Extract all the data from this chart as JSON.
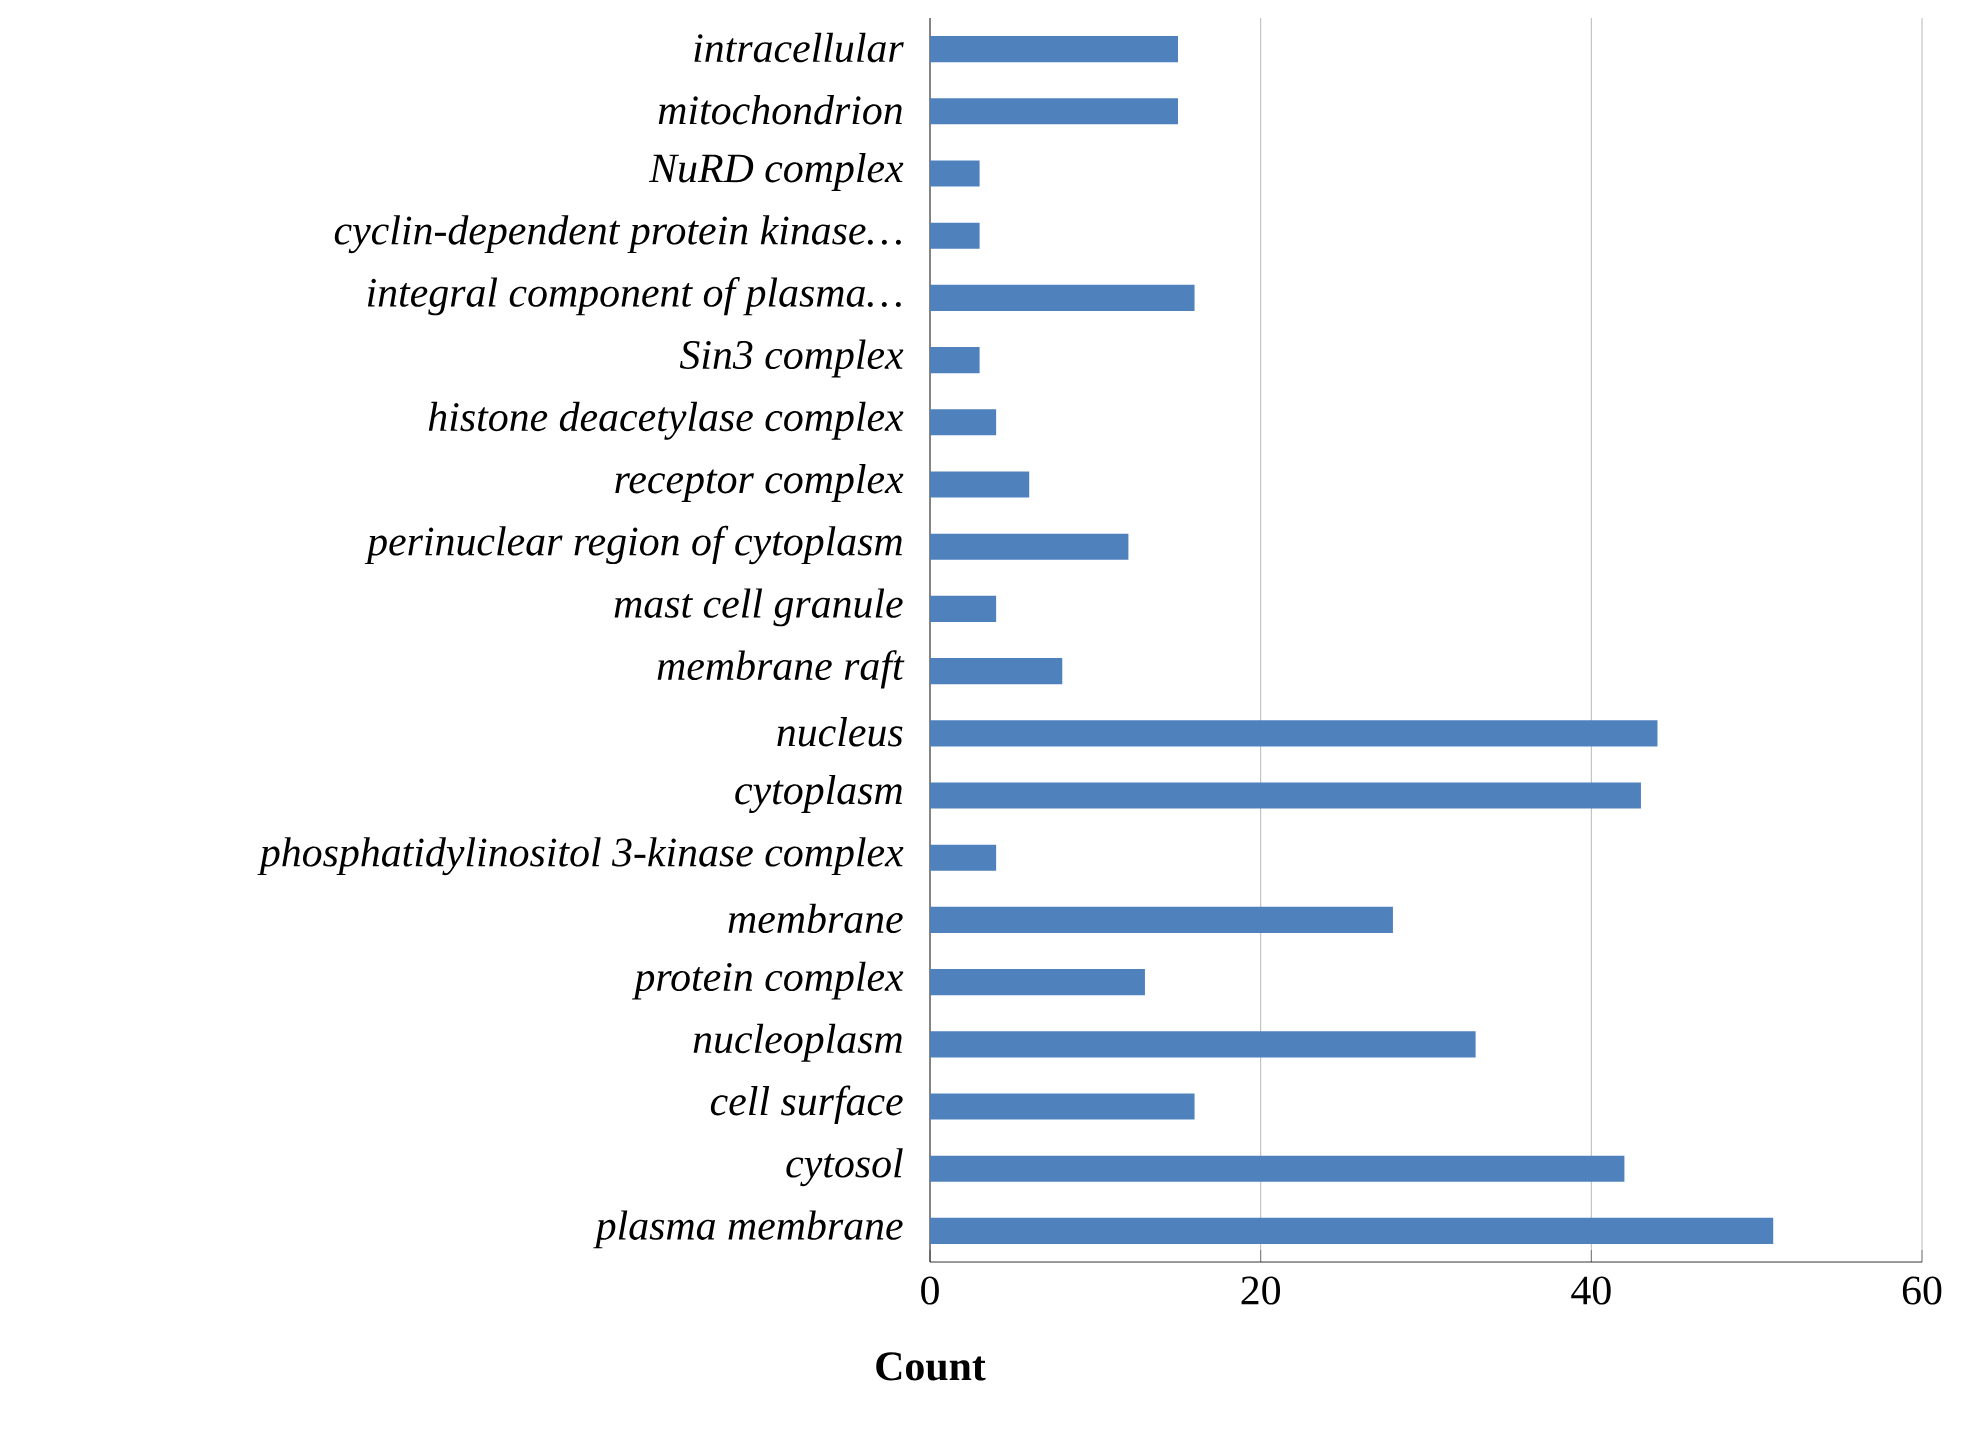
{
  "chart_data": {
    "type": "bar",
    "orientation": "horizontal",
    "xlabel": "Count",
    "categories": [
      "intracellular",
      "mitochondrion",
      "NuRD complex",
      "cyclin-dependent protein kinase…",
      "integral component of plasma…",
      "Sin3 complex",
      "histone deacetylase complex",
      "receptor complex",
      "perinuclear region of cytoplasm",
      "mast cell granule",
      "membrane raft",
      "nucleus",
      "cytoplasm",
      "phosphatidylinositol 3-kinase complex",
      "membrane",
      "protein complex",
      "nucleoplasm",
      "cell surface",
      "cytosol",
      "plasma membrane"
    ],
    "values": [
      15,
      15,
      3,
      3,
      16,
      3,
      4,
      6,
      12,
      4,
      8,
      44,
      43,
      4,
      28,
      13,
      33,
      16,
      42,
      51
    ],
    "color": "#4f81bd",
    "xlim": [
      0,
      60
    ],
    "xticks": [
      0,
      20,
      40,
      60
    ],
    "grid": "x"
  }
}
